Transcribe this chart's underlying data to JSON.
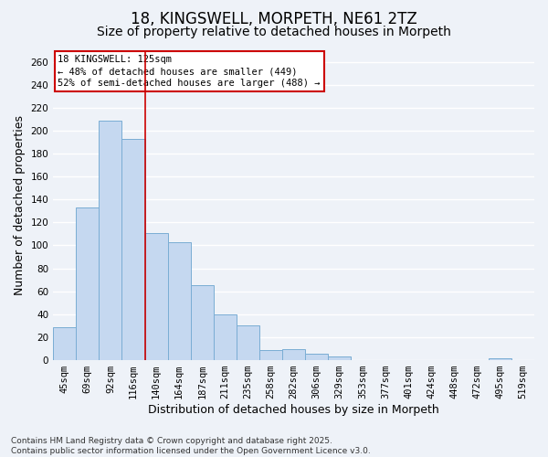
{
  "title": "18, KINGSWELL, MORPETH, NE61 2TZ",
  "subtitle": "Size of property relative to detached houses in Morpeth",
  "xlabel": "Distribution of detached houses by size in Morpeth",
  "ylabel": "Number of detached properties",
  "categories": [
    "45sqm",
    "69sqm",
    "92sqm",
    "116sqm",
    "140sqm",
    "164sqm",
    "187sqm",
    "211sqm",
    "235sqm",
    "258sqm",
    "282sqm",
    "306sqm",
    "329sqm",
    "353sqm",
    "377sqm",
    "401sqm",
    "424sqm",
    "448sqm",
    "472sqm",
    "495sqm",
    "519sqm"
  ],
  "values": [
    29,
    133,
    209,
    193,
    111,
    103,
    65,
    40,
    30,
    9,
    10,
    6,
    3,
    0,
    0,
    0,
    0,
    0,
    0,
    2,
    0
  ],
  "bar_color": "#c5d8f0",
  "bar_edge_color": "#7aadd4",
  "vline_x": 3.5,
  "vline_color": "#cc0000",
  "annotation_line1": "18 KINGSWELL: 125sqm",
  "annotation_line2": "← 48% of detached houses are smaller (449)",
  "annotation_line3": "52% of semi-detached houses are larger (488) →",
  "annotation_box_color": "white",
  "annotation_box_edge_color": "#cc0000",
  "ylim": [
    0,
    270
  ],
  "yticks": [
    0,
    20,
    40,
    60,
    80,
    100,
    120,
    140,
    160,
    180,
    200,
    220,
    240,
    260
  ],
  "footer": "Contains HM Land Registry data © Crown copyright and database right 2025.\nContains public sector information licensed under the Open Government Licence v3.0.",
  "bg_color": "#eef2f8",
  "grid_color": "#ffffff",
  "title_fontsize": 12,
  "subtitle_fontsize": 10,
  "tick_fontsize": 7.5,
  "label_fontsize": 9,
  "footer_fontsize": 6.5
}
